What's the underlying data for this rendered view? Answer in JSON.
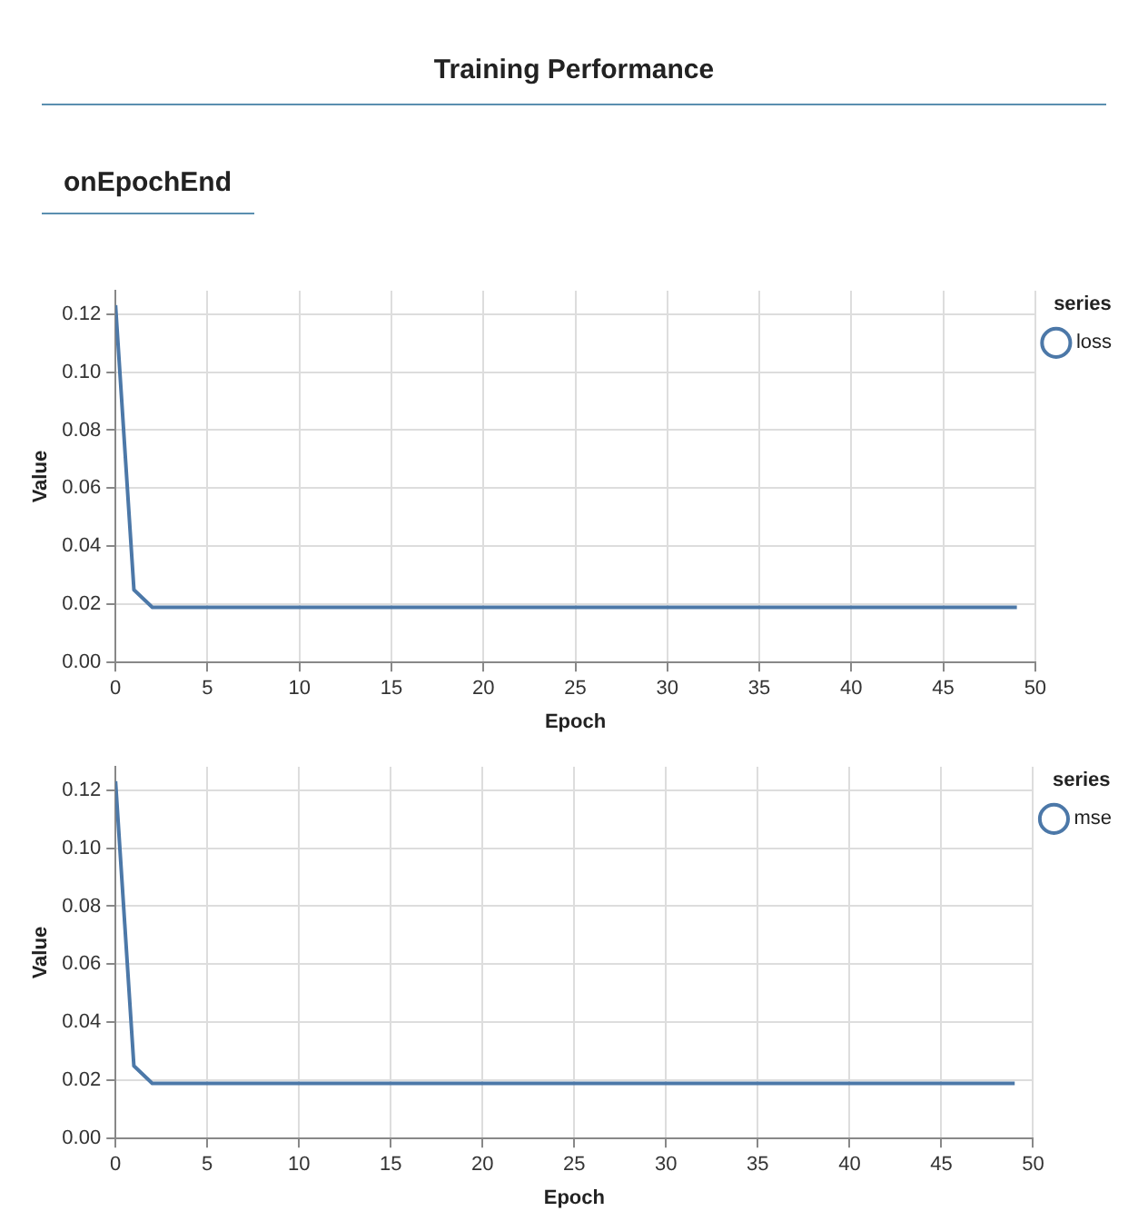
{
  "chart_data": [
    {
      "type": "line",
      "title": "Training Performance",
      "subtitle": "onEpochEnd",
      "xlabel": "Epoch",
      "ylabel": "Value",
      "legend_title": "series",
      "legend": "top right",
      "series": [
        {
          "name": "loss",
          "color": "#4c78a8",
          "values": [
            0.123,
            0.025,
            0.019,
            0.019,
            0.019,
            0.019,
            0.019,
            0.019,
            0.019,
            0.019,
            0.019,
            0.019,
            0.019,
            0.019,
            0.019,
            0.019,
            0.019,
            0.019,
            0.019,
            0.019,
            0.019,
            0.019,
            0.019,
            0.019,
            0.019,
            0.019,
            0.019,
            0.019,
            0.019,
            0.019,
            0.019,
            0.019,
            0.019,
            0.019,
            0.019,
            0.019,
            0.019,
            0.019,
            0.019,
            0.019,
            0.019,
            0.019,
            0.019,
            0.019,
            0.019,
            0.019,
            0.019,
            0.019,
            0.019,
            0.019
          ]
        }
      ],
      "x": [
        0,
        1,
        2,
        3,
        4,
        5,
        6,
        7,
        8,
        9,
        10,
        11,
        12,
        13,
        14,
        15,
        16,
        17,
        18,
        19,
        20,
        21,
        22,
        23,
        24,
        25,
        26,
        27,
        28,
        29,
        30,
        31,
        32,
        33,
        34,
        35,
        36,
        37,
        38,
        39,
        40,
        41,
        42,
        43,
        44,
        45,
        46,
        47,
        48,
        49
      ],
      "xlim": [
        0,
        50
      ],
      "xticks": [
        0,
        5,
        10,
        15,
        20,
        25,
        30,
        35,
        40,
        45,
        50
      ],
      "ylim": [
        0,
        0.128
      ],
      "yticks": [
        {
          "value": 0,
          "label": "0.00"
        },
        {
          "value": 0.02,
          "label": "0.02"
        },
        {
          "value": 0.04,
          "label": "0.04"
        },
        {
          "value": 0.06,
          "label": "0.06"
        },
        {
          "value": 0.08,
          "label": "0.08"
        },
        {
          "value": 0.1,
          "label": "0.10"
        },
        {
          "value": 0.12,
          "label": "0.12"
        }
      ],
      "grid": true
    },
    {
      "type": "line",
      "xlabel": "Epoch",
      "ylabel": "Value",
      "legend_title": "series",
      "legend": "top right",
      "series": [
        {
          "name": "mse",
          "color": "#4c78a8",
          "values": [
            0.123,
            0.025,
            0.019,
            0.019,
            0.019,
            0.019,
            0.019,
            0.019,
            0.019,
            0.019,
            0.019,
            0.019,
            0.019,
            0.019,
            0.019,
            0.019,
            0.019,
            0.019,
            0.019,
            0.019,
            0.019,
            0.019,
            0.019,
            0.019,
            0.019,
            0.019,
            0.019,
            0.019,
            0.019,
            0.019,
            0.019,
            0.019,
            0.019,
            0.019,
            0.019,
            0.019,
            0.019,
            0.019,
            0.019,
            0.019,
            0.019,
            0.019,
            0.019,
            0.019,
            0.019,
            0.019,
            0.019,
            0.019,
            0.019,
            0.019
          ]
        }
      ],
      "x": [
        0,
        1,
        2,
        3,
        4,
        5,
        6,
        7,
        8,
        9,
        10,
        11,
        12,
        13,
        14,
        15,
        16,
        17,
        18,
        19,
        20,
        21,
        22,
        23,
        24,
        25,
        26,
        27,
        28,
        29,
        30,
        31,
        32,
        33,
        34,
        35,
        36,
        37,
        38,
        39,
        40,
        41,
        42,
        43,
        44,
        45,
        46,
        47,
        48,
        49
      ],
      "xlim": [
        0,
        50
      ],
      "xticks": [
        0,
        5,
        10,
        15,
        20,
        25,
        30,
        35,
        40,
        45,
        50
      ],
      "ylim": [
        0,
        0.128
      ],
      "yticks": [
        {
          "value": 0,
          "label": "0.00"
        },
        {
          "value": 0.02,
          "label": "0.02"
        },
        {
          "value": 0.04,
          "label": "0.04"
        },
        {
          "value": 0.06,
          "label": "0.06"
        },
        {
          "value": 0.08,
          "label": "0.08"
        },
        {
          "value": 0.1,
          "label": "0.10"
        },
        {
          "value": 0.12,
          "label": "0.12"
        }
      ],
      "grid": true
    }
  ]
}
